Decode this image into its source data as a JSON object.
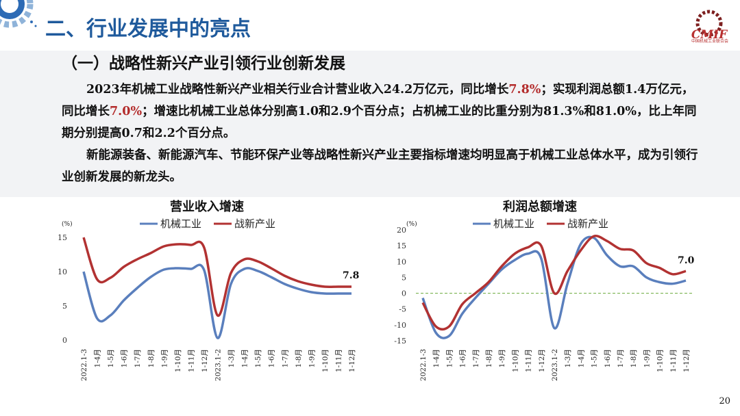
{
  "header": {
    "title": "二、行业发展中的亮点",
    "logo_text": "CMIF",
    "logo_caption": "中国机械工业联合会"
  },
  "section": {
    "subtitle": "（一）战略性新兴产业引领行业创新发展"
  },
  "paragraphs": {
    "p1": {
      "s1": "2023年机械工业战略性新兴产业相关行业合计营业收入24.2万亿元，同比增长",
      "v1": "7.8%",
      "s2": "；实现利润总额1.4万亿元，同比增长",
      "v2": "7.0%",
      "s3": "；增速比机械工业总体分别高1.0和2.9个百分点；占机械工业的比重分别为81.3%和81.0%，比上年同期分别提高0.7和2.2个百分点。"
    },
    "p2": "新能源装备、新能源汽车、节能环保产业等战略性新兴产业主要指标增速均明显高于机械工业总体水平，成为引领行业创新发展的新龙头。"
  },
  "colors": {
    "title_blue": "#1f5a9c",
    "highlight_red": "#b32b2b",
    "series_blue": "#5a7fbd",
    "series_red": "#b23232",
    "zero_line": "#6aaa3a"
  },
  "page_number": "20",
  "chart_data": [
    {
      "type": "line",
      "title": "营业收入增速",
      "unit_label": "(%)",
      "ylim": [
        0,
        15
      ],
      "yticks": [
        0,
        5,
        10,
        15
      ],
      "grid": false,
      "legend_position": "top",
      "categories": [
        "2022.1-3",
        "1-4月",
        "1-5月",
        "1-6月",
        "1-7月",
        "1-8月",
        "1-9月",
        "1-10月",
        "1-11月",
        "1-12月",
        "2023.1-2",
        "1-3月",
        "1-4月",
        "1-5月",
        "1-6月",
        "1-7月",
        "1-8月",
        "1-9月",
        "1-10月",
        "1-11月",
        "1-12月"
      ],
      "series": [
        {
          "name": "机械工业",
          "color": "#5a7fbd",
          "values": [
            10.0,
            3.2,
            3.6,
            5.8,
            7.6,
            9.2,
            10.3,
            10.5,
            10.4,
            10.2,
            0.3,
            8.2,
            10.4,
            10.1,
            9.2,
            8.2,
            7.5,
            7.0,
            6.8,
            6.8,
            6.8
          ]
        },
        {
          "name": "战新产业",
          "color": "#b23232",
          "values": [
            15.0,
            8.9,
            9.1,
            10.7,
            11.8,
            12.7,
            13.7,
            14.0,
            13.9,
            13.5,
            3.6,
            9.8,
            11.8,
            11.5,
            10.5,
            9.4,
            8.6,
            8.1,
            7.8,
            7.8,
            7.8
          ]
        }
      ],
      "annotation": "7.8"
    },
    {
      "type": "line",
      "title": "利润总额增速",
      "unit_label": "(%)",
      "ylim": [
        -15,
        20
      ],
      "yticks": [
        -15,
        -10,
        -5,
        0,
        5,
        10,
        15,
        20
      ],
      "grid": false,
      "zero_line": true,
      "legend_position": "top",
      "categories": [
        "2022.1-3",
        "1-4月",
        "1-5月",
        "1-6月",
        "1-7月",
        "1-8月",
        "1-9月",
        "1-10月",
        "1-11月",
        "1-12月",
        "2023.1-2",
        "1-3月",
        "1-4月",
        "1-5月",
        "1-6月",
        "1-7月",
        "1-8月",
        "1-9月",
        "1-10月",
        "1-11月",
        "1-12月"
      ],
      "series": [
        {
          "name": "机械工业",
          "color": "#5a7fbd",
          "values": [
            -1.5,
            -12.5,
            -13.5,
            -6.5,
            -1.5,
            3.0,
            7.5,
            10.5,
            12.5,
            11.0,
            -11.0,
            3.0,
            15.5,
            17.5,
            12.0,
            8.5,
            8.5,
            5.0,
            3.5,
            3.0,
            4.0
          ]
        },
        {
          "name": "战新产业",
          "color": "#b23232",
          "values": [
            -3.0,
            -10.5,
            -10.5,
            -3.5,
            0.0,
            3.5,
            8.5,
            12.5,
            14.5,
            15.0,
            0.0,
            7.0,
            13.5,
            18.0,
            16.5,
            14.0,
            13.5,
            9.5,
            8.0,
            6.0,
            7.0
          ]
        }
      ],
      "annotation": "7.0"
    }
  ]
}
